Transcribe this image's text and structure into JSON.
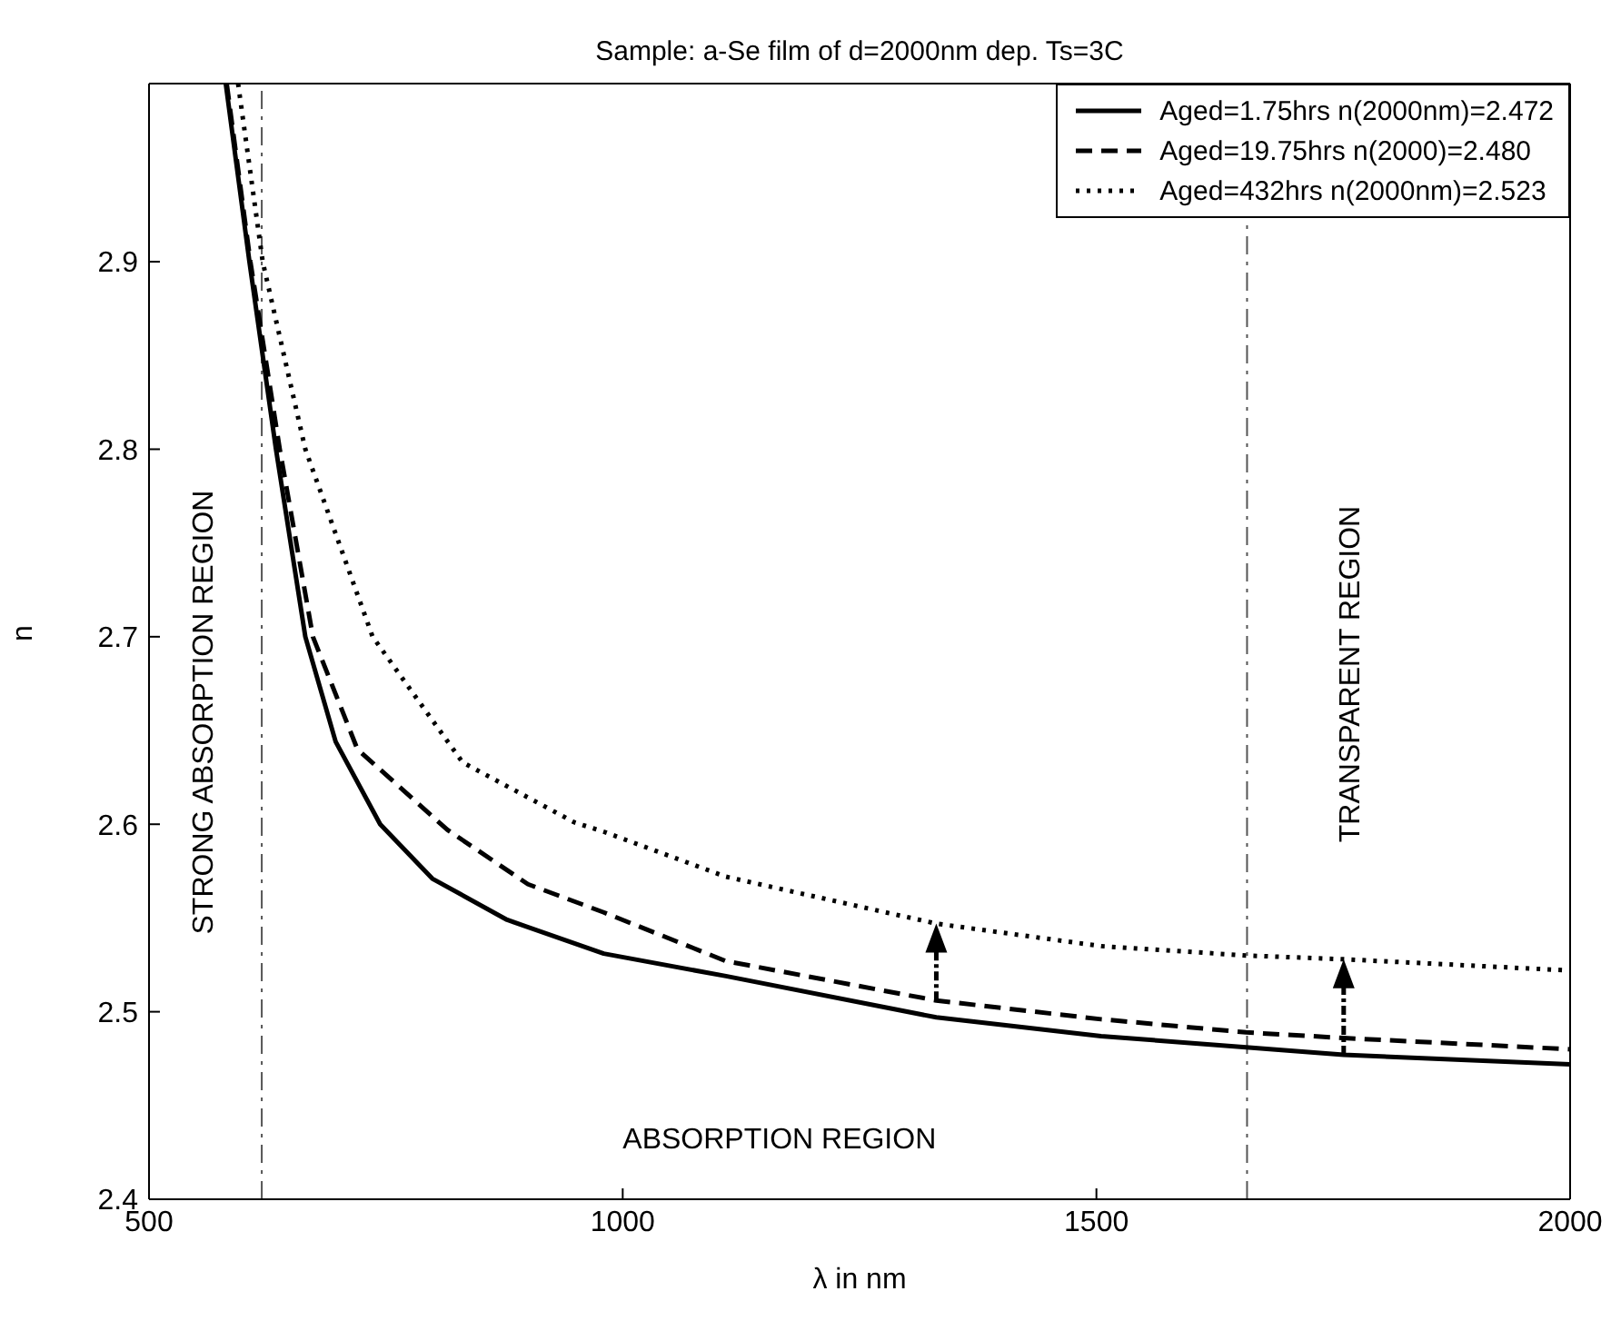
{
  "chart_data": {
    "type": "line",
    "title": "Sample: a-Se film of d=2000nm dep. Ts=3C",
    "xlabel": "λ in nm",
    "ylabel": "n",
    "xlim": [
      500,
      2000
    ],
    "xticks": [
      500,
      1000,
      1500,
      2000
    ],
    "ylim": [
      2.4,
      2.995
    ],
    "yticks": [
      2.4,
      2.5,
      2.6,
      2.7,
      2.8,
      2.9
    ],
    "grid": false,
    "legend": "top right",
    "series": [
      {
        "name": "Aged=1.75hrs n(2000nm)=2.472",
        "color": "#000000",
        "line_style": "solid",
        "x": [
          581,
          606,
          634,
          665,
          697,
          744,
          799,
          878,
          980,
          1109,
          1331,
          1505,
          1658,
          1761,
          2000
        ],
        "values": [
          2.995,
          2.9,
          2.8,
          2.7,
          2.644,
          2.6,
          2.571,
          2.549,
          2.531,
          2.519,
          2.497,
          2.487,
          2.481,
          2.477,
          2.472
        ]
      },
      {
        "name": "Aged=19.75hrs n(2000)=2.480",
        "color": "#000000",
        "line_style": "dashed",
        "x": [
          582,
          607,
          638,
          673,
          720,
          815,
          900,
          980,
          1109,
          1331,
          1505,
          1658,
          1761,
          2000
        ],
        "values": [
          2.995,
          2.9,
          2.8,
          2.7,
          2.64,
          2.597,
          2.568,
          2.553,
          2.527,
          2.506,
          2.496,
          2.489,
          2.486,
          2.48
        ]
      },
      {
        "name": "Aged=432hrs n(2000nm)=2.523",
        "color": "#000000",
        "line_style": "dotted",
        "x": [
          594,
          620,
          665,
          736,
          831,
          949,
          980,
          1109,
          1331,
          1505,
          1658,
          1761,
          2000
        ],
        "values": [
          2.995,
          2.9,
          2.8,
          2.7,
          2.633,
          2.601,
          2.596,
          2.572,
          2.547,
          2.535,
          2.53,
          2.528,
          2.522
        ]
      }
    ],
    "ref_lines": [
      {
        "axis": "x",
        "value": 619,
        "label": null
      },
      {
        "axis": "x",
        "value": 1659,
        "label": null
      }
    ],
    "annotations": [
      "STRONG ABSORPTION REGION",
      "ABSORPTION REGION",
      "TRANSPARENT REGION"
    ]
  }
}
